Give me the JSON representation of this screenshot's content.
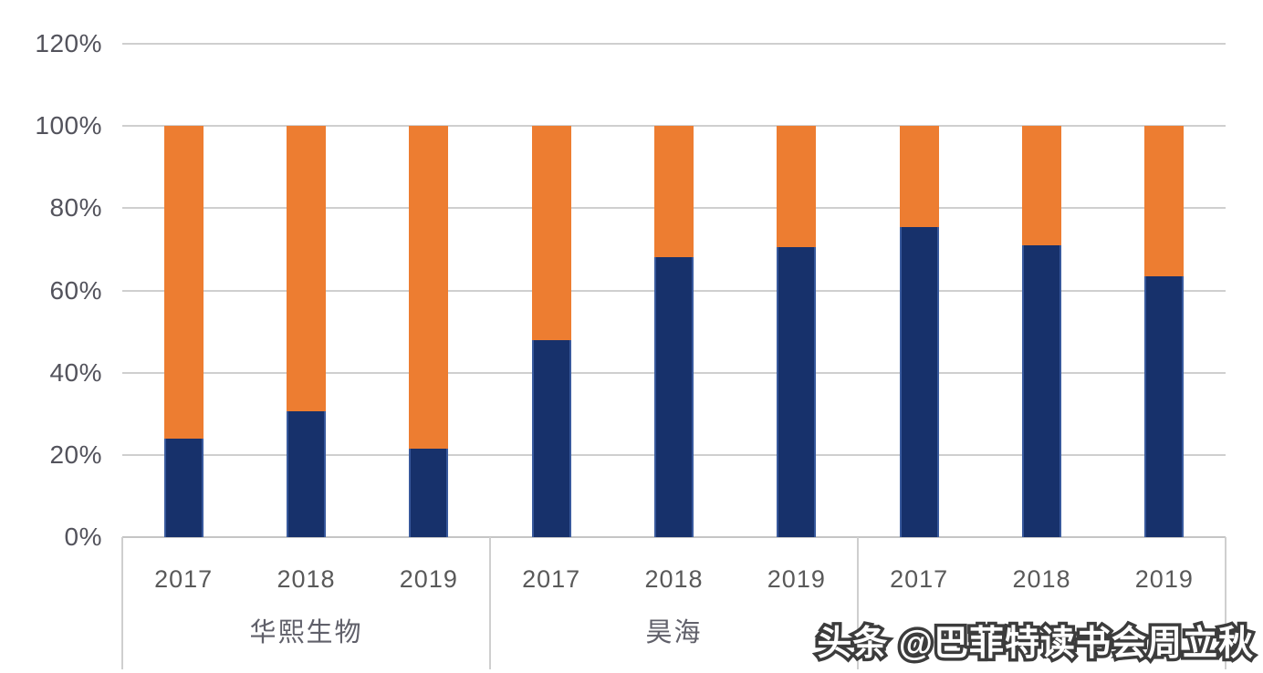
{
  "page": {
    "background": "#ffffff"
  },
  "watermark": {
    "text": "头条 @巴菲特读书会周立秋"
  },
  "colors": {
    "navy": "#17316b",
    "orange": "#ed7d31",
    "grid": "#cfcfcf",
    "axis_line": "#c5c5c5",
    "y_tick_text": "#53535c",
    "year_text": "#595959",
    "group_text": "#60606a"
  },
  "chart_data": {
    "type": "bar",
    "subtype": "100-percent-stacked-column",
    "title": "",
    "xlabel": "",
    "ylabel": "",
    "legend": "none",
    "categories": [
      "2017",
      "2018",
      "2019",
      "2017",
      "2018",
      "2019",
      "2017",
      "2018",
      "2019"
    ],
    "group_labels": [
      "华熙生物",
      "昊海",
      ""
    ],
    "series": [
      {
        "name": "dark-blue-bottom-segment",
        "color": "#17316b",
        "values": [
          24,
          30.5,
          21.5,
          48,
          68,
          70.5,
          75.5,
          71,
          63.5
        ]
      },
      {
        "name": "orange-top-segment",
        "color": "#ed7d31",
        "values": [
          76,
          69.5,
          78.5,
          52,
          32,
          29.5,
          24.5,
          29,
          36.5
        ]
      }
    ],
    "stack_total_percent": 100,
    "y_axis": {
      "tick_labels": [
        "0%",
        "20%",
        "40%",
        "60%",
        "80%",
        "100%",
        "120%"
      ],
      "min": 0,
      "max": 120,
      "step": 20,
      "unit": "%",
      "gridlines": true
    }
  }
}
